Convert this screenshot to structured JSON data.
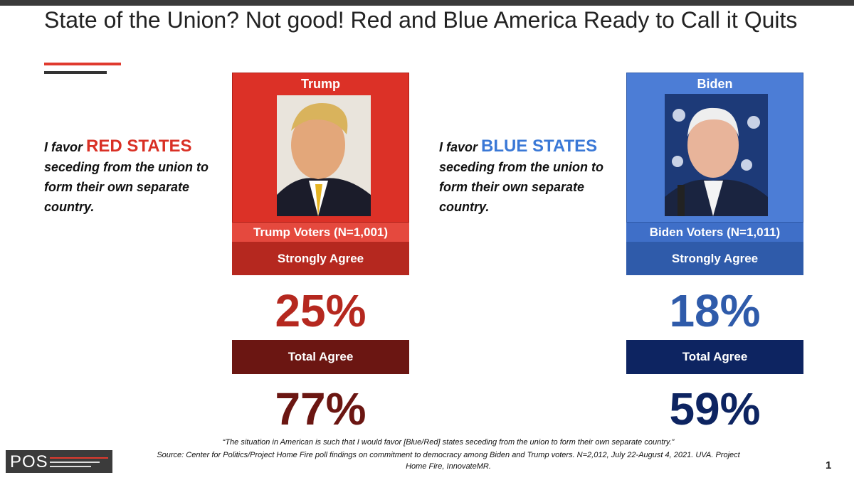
{
  "title": "State of the Union? Not good! Red and Blue America Ready to Call it Quits",
  "panels": [
    {
      "statement_prefix": "I favor",
      "statement_highlight": "RED STATES",
      "statement_rest": "seceding from the union to form their own separate country.",
      "candidate": "Trump",
      "voters": "Trump Voters (N=1,001)",
      "strongly_label": "Strongly Agree",
      "strongly_value": "25%",
      "total_label": "Total Agree",
      "total_value": "77%"
    },
    {
      "statement_prefix": "I favor",
      "statement_highlight": "BLUE STATES",
      "statement_rest": "seceding from the union to form their own separate country.",
      "candidate": "Biden",
      "voters": "Biden Voters (N=1,011)",
      "strongly_label": "Strongly Agree",
      "strongly_value": "18%",
      "total_label": "Total Agree",
      "total_value": "59%"
    }
  ],
  "footnote": {
    "quote": "“The situation in American is such that I would favor [Blue/Red] states seceding from the union to form their own separate country.”",
    "source": "Source: Center for Politics/Project Home Fire poll findings on commitment to democracy among Biden and Trump voters. N=2,012, July 22-August 4, 2021.  UVA. Project Home Fire, InnovateMR."
  },
  "logo": "POS",
  "page_number": "1"
}
